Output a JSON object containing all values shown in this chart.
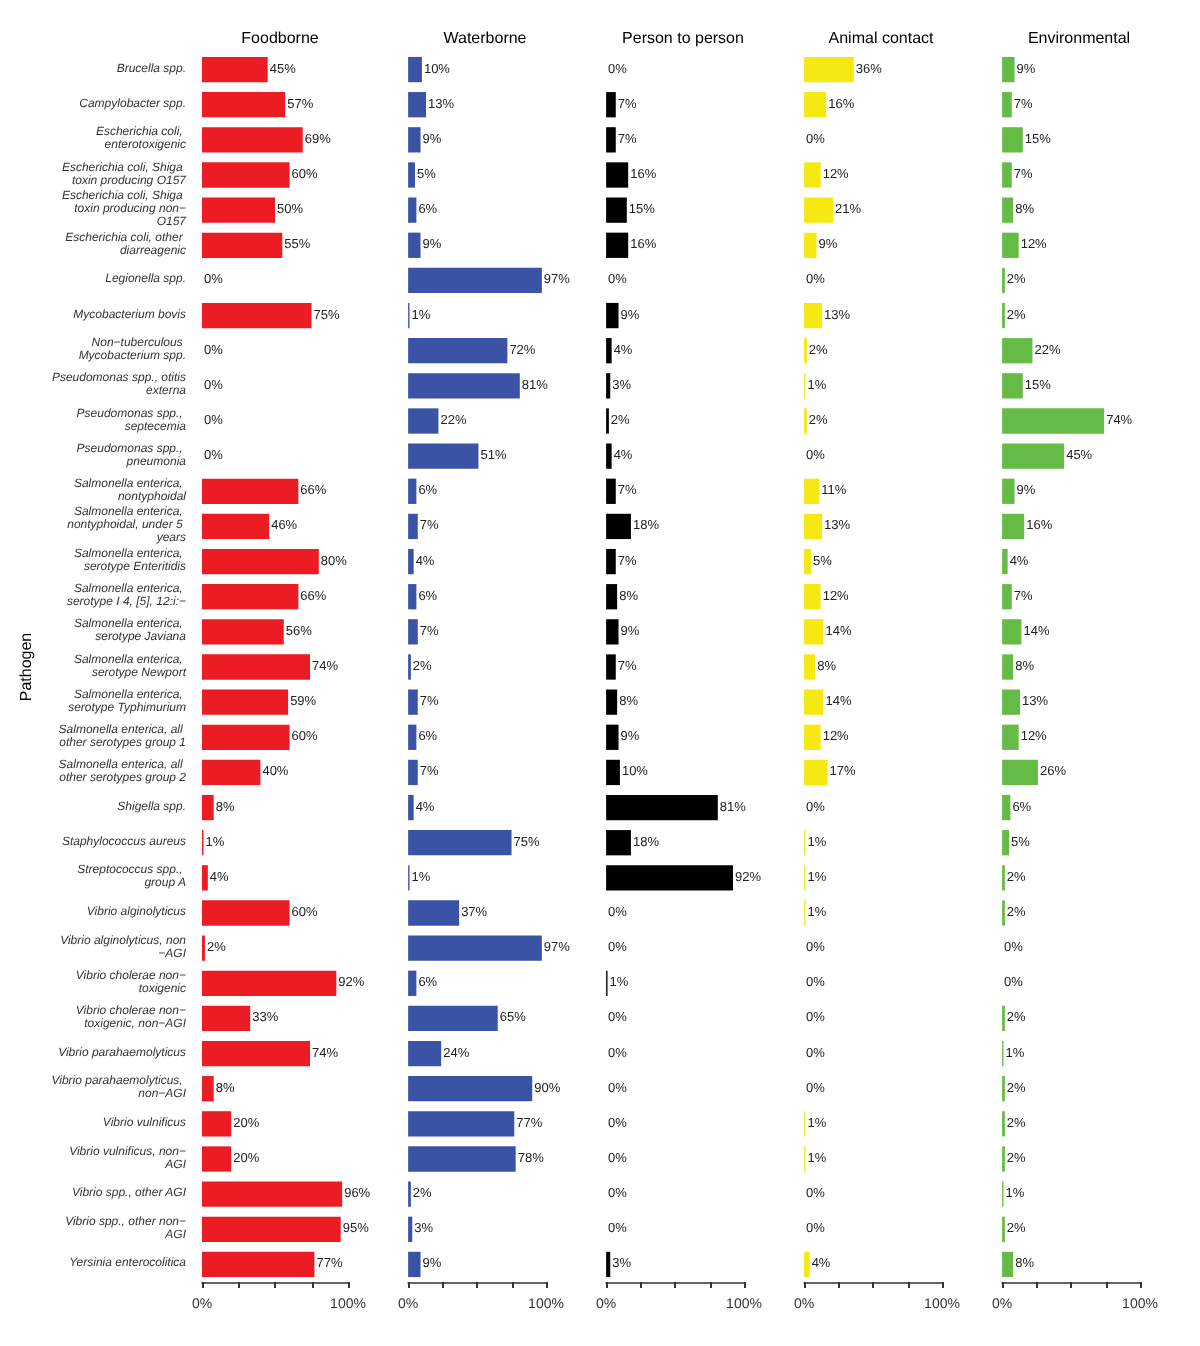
{
  "chart_data": [
    {
      "type": "bar",
      "orientation": "horizontal",
      "title": "Foodborne",
      "ylabel": "Pathogen",
      "color": "#ec1c24",
      "categories": [
        "Brucella spp.",
        "Campylobacter spp.",
        "Escherichia coli, enterotoxigenic",
        "Escherichia coli, Shiga toxin producing O157",
        "Escherichia coli, Shiga toxin producing non−O157",
        "Escherichia coli, other diarreagenic",
        "Legionella spp.",
        "Mycobacterium bovis",
        "Non−tuberculous Mycobacterium spp.",
        "Pseudomonas spp., otitis externa",
        "Pseudomonas spp., septecemia",
        "Pseudomonas spp., pneumonia",
        "Salmonella enterica, nontyphoidal",
        "Salmonella enterica, nontyphoidal, under 5 years",
        "Salmonella enterica, serotype Enteritidis",
        "Salmonella enterica, serotype I 4, [5], 12:i:−",
        "Salmonella enterica, serotype Javiana",
        "Salmonella enterica, serotype Newport",
        "Salmonella enterica, serotype Typhimurium",
        "Salmonella enterica, all other serotypes group 1",
        "Salmonella enterica, all other serotypes group 2",
        "Shigella spp.",
        "Staphylococcus aureus",
        "Streptococcus spp., group A",
        "Vibrio alginolyticus",
        "Vibrio alginolyticus, non−AGI",
        "Vibrio cholerae non−toxigenic",
        "Vibrio cholerae non−toxigenic, non−AGI",
        "Vibrio parahaemolyticus",
        "Vibrio parahaemolyticus, non−AGI",
        "Vibrio vulnificus",
        "Vibrio vulnificus, non−AGI",
        "Vibrio spp., other AGI",
        "Vibrio spp., other non−AGI",
        "Yersinia enterocolitica"
      ],
      "values": [
        45,
        57,
        69,
        60,
        50,
        55,
        0,
        75,
        0,
        0,
        0,
        0,
        66,
        46,
        80,
        66,
        56,
        74,
        59,
        60,
        40,
        8,
        1,
        4,
        60,
        2,
        92,
        33,
        74,
        8,
        20,
        20,
        96,
        95,
        77
      ],
      "value_labels": [
        "45%",
        "57%",
        "69%",
        "60%",
        "50%",
        "55%",
        "0%",
        "75%",
        "0%",
        "0%",
        "0%",
        "0%",
        "66%",
        "46%",
        "80%",
        "66%",
        "56%",
        "74%",
        "59%",
        "60%",
        "40%",
        "8%",
        "1%",
        "4%",
        "60%",
        "2%",
        "92%",
        "33%",
        "74%",
        "8%",
        "20%",
        "20%",
        "96%",
        "95%",
        "77%"
      ],
      "xlim": [
        0,
        100
      ],
      "xticks": [
        {
          "value": 0,
          "label": "0%"
        },
        {
          "value": 25,
          "label": null
        },
        {
          "value": 50,
          "label": null
        },
        {
          "value": 75,
          "label": null
        },
        {
          "value": 100,
          "label": "100%"
        }
      ]
    },
    {
      "type": "bar",
      "orientation": "horizontal",
      "title": "Waterborne",
      "color": "#3a53a4",
      "tick_labels": "x",
      "categories": [
        "Brucella spp.",
        "Campylobacter spp.",
        "Escherichia coli, enterotoxigenic",
        "Escherichia coli, Shiga toxin producing O157",
        "Escherichia coli, Shiga toxin producing non−O157",
        "Escherichia coli, other diarreagenic",
        "Legionella spp.",
        "Mycobacterium bovis",
        "Non−tuberculous Mycobacterium spp.",
        "Pseudomonas spp., otitis externa",
        "Pseudomonas spp., septecemia",
        "Pseudomonas spp., pneumonia",
        "Salmonella enterica, nontyphoidal",
        "Salmonella enterica, nontyphoidal, under 5 years",
        "Salmonella enterica, serotype Enteritidis",
        "Salmonella enterica, serotype I 4, [5], 12:i:−",
        "Salmonella enterica, serotype Javiana",
        "Salmonella enterica, serotype Newport",
        "Salmonella enterica, serotype Typhimurium",
        "Salmonella enterica, all other serotypes group 1",
        "Salmonella enterica, all other serotypes group 2",
        "Shigella spp.",
        "Staphylococcus aureus",
        "Streptococcus spp., group A",
        "Vibrio alginolyticus",
        "Vibrio alginolyticus, non−AGI",
        "Vibrio cholerae non−toxigenic",
        "Vibrio cholerae non−toxigenic, non−AGI",
        "Vibrio parahaemolyticus",
        "Vibrio parahaemolyticus, non−AGI",
        "Vibrio vulnificus",
        "Vibrio vulnificus, non−AGI",
        "Vibrio spp., other AGI",
        "Vibrio spp., other non−AGI",
        "Yersinia enterocolitica"
      ],
      "values": [
        10,
        13,
        9,
        5,
        6,
        9,
        97,
        1,
        72,
        81,
        22,
        51,
        6,
        7,
        4,
        6,
        7,
        2,
        7,
        6,
        7,
        4,
        75,
        1,
        37,
        97,
        6,
        65,
        24,
        90,
        77,
        78,
        2,
        3,
        9
      ],
      "value_labels": [
        "10%",
        "13%",
        "9%",
        "5%",
        "6%",
        "9%",
        "97%",
        "1%",
        "72%",
        "81%",
        "22%",
        "51%",
        "6%",
        "7%",
        "4%",
        "6%",
        "7%",
        "2%",
        "7%",
        "6%",
        "7%",
        "4%",
        "75%",
        "1%",
        "37%",
        "97%",
        "6%",
        "65%",
        "24%",
        "90%",
        "77%",
        "78%",
        "2%",
        "3%",
        "9%"
      ],
      "xlim": [
        0,
        100
      ],
      "xticks": [
        {
          "value": 0,
          "label": "0%"
        },
        {
          "value": 25,
          "label": null
        },
        {
          "value": 50,
          "label": null
        },
        {
          "value": 75,
          "label": null
        },
        {
          "value": 100,
          "label": "100%"
        }
      ]
    },
    {
      "type": "bar",
      "orientation": "horizontal",
      "title": "Person to person",
      "color": "#000000",
      "tick_labels": "x",
      "categories": [
        "Brucella spp.",
        "Campylobacter spp.",
        "Escherichia coli, enterotoxigenic",
        "Escherichia coli, Shiga toxin producing O157",
        "Escherichia coli, Shiga toxin producing non−O157",
        "Escherichia coli, other diarreagenic",
        "Legionella spp.",
        "Mycobacterium bovis",
        "Non−tuberculous Mycobacterium spp.",
        "Pseudomonas spp., otitis externa",
        "Pseudomonas spp., septecemia",
        "Pseudomonas spp., pneumonia",
        "Salmonella enterica, nontyphoidal",
        "Salmonella enterica, nontyphoidal, under 5 years",
        "Salmonella enterica, serotype Enteritidis",
        "Salmonella enterica, serotype I 4, [5], 12:i:−",
        "Salmonella enterica, serotype Javiana",
        "Salmonella enterica, serotype Newport",
        "Salmonella enterica, serotype Typhimurium",
        "Salmonella enterica, all other serotypes group 1",
        "Salmonella enterica, all other serotypes group 2",
        "Shigella spp.",
        "Staphylococcus aureus",
        "Streptococcus spp., group A",
        "Vibrio alginolyticus",
        "Vibrio alginolyticus, non−AGI",
        "Vibrio cholerae non−toxigenic",
        "Vibrio cholerae non−toxigenic, non−AGI",
        "Vibrio parahaemolyticus",
        "Vibrio parahaemolyticus, non−AGI",
        "Vibrio vulnificus",
        "Vibrio vulnificus, non−AGI",
        "Vibrio spp., other AGI",
        "Vibrio spp., other non−AGI",
        "Yersinia enterocolitica"
      ],
      "values": [
        0,
        7,
        7,
        16,
        15,
        16,
        0,
        9,
        4,
        3,
        2,
        4,
        7,
        18,
        7,
        8,
        9,
        7,
        8,
        9,
        10,
        81,
        18,
        92,
        0,
        0,
        1,
        0,
        0,
        0,
        0,
        0,
        0,
        0,
        3
      ],
      "value_labels": [
        "0%",
        "7%",
        "7%",
        "16%",
        "15%",
        "16%",
        "0%",
        "9%",
        "4%",
        "3%",
        "2%",
        "4%",
        "7%",
        "18%",
        "7%",
        "8%",
        "9%",
        "7%",
        "8%",
        "9%",
        "10%",
        "81%",
        "18%",
        "92%",
        "0%",
        "0%",
        "1%",
        "0%",
        "0%",
        "0%",
        "0%",
        "0%",
        "0%",
        "0%",
        "3%"
      ],
      "xlim": [
        0,
        100
      ],
      "xticks": [
        {
          "value": 0,
          "label": "0%"
        },
        {
          "value": 25,
          "label": null
        },
        {
          "value": 50,
          "label": null
        },
        {
          "value": 75,
          "label": null
        },
        {
          "value": 100,
          "label": "100%"
        }
      ]
    },
    {
      "type": "bar",
      "orientation": "horizontal",
      "title": "Animal contact",
      "color": "#f5e911",
      "tick_labels": "x",
      "categories": [
        "Brucella spp.",
        "Campylobacter spp.",
        "Escherichia coli, enterotoxigenic",
        "Escherichia coli, Shiga toxin producing O157",
        "Escherichia coli, Shiga toxin producing non−O157",
        "Escherichia coli, other diarreagenic",
        "Legionella spp.",
        "Mycobacterium bovis",
        "Non−tuberculous Mycobacterium spp.",
        "Pseudomonas spp., otitis externa",
        "Pseudomonas spp., septecemia",
        "Pseudomonas spp., pneumonia",
        "Salmonella enterica, nontyphoidal",
        "Salmonella enterica, nontyphoidal, under 5 years",
        "Salmonella enterica, serotype Enteritidis",
        "Salmonella enterica, serotype I 4, [5], 12:i:−",
        "Salmonella enterica, serotype Javiana",
        "Salmonella enterica, serotype Newport",
        "Salmonella enterica, serotype Typhimurium",
        "Salmonella enterica, all other serotypes group 1",
        "Salmonella enterica, all other serotypes group 2",
        "Shigella spp.",
        "Staphylococcus aureus",
        "Streptococcus spp., group A",
        "Vibrio alginolyticus",
        "Vibrio alginolyticus, non−AGI",
        "Vibrio cholerae non−toxigenic",
        "Vibrio cholerae non−toxigenic, non−AGI",
        "Vibrio parahaemolyticus",
        "Vibrio parahaemolyticus, non−AGI",
        "Vibrio vulnificus",
        "Vibrio vulnificus, non−AGI",
        "Vibrio spp., other AGI",
        "Vibrio spp., other non−AGI",
        "Yersinia enterocolitica"
      ],
      "values": [
        36,
        16,
        0,
        12,
        21,
        9,
        0,
        13,
        2,
        1,
        2,
        0,
        11,
        13,
        5,
        12,
        14,
        8,
        14,
        12,
        17,
        0,
        1,
        1,
        1,
        0,
        0,
        0,
        0,
        0,
        1,
        1,
        0,
        0,
        4
      ],
      "value_labels": [
        "36%",
        "16%",
        "0%",
        "12%",
        "21%",
        "9%",
        "0%",
        "13%",
        "2%",
        "1%",
        "2%",
        "0%",
        "11%",
        "13%",
        "5%",
        "12%",
        "14%",
        "8%",
        "14%",
        "12%",
        "17%",
        "0%",
        "1%",
        "1%",
        "1%",
        "0%",
        "0%",
        "0%",
        "0%",
        "0%",
        "1%",
        "1%",
        "0%",
        "0%",
        "4%"
      ],
      "xlim": [
        0,
        100
      ],
      "xticks": [
        {
          "value": 0,
          "label": "0%"
        },
        {
          "value": 25,
          "label": null
        },
        {
          "value": 50,
          "label": null
        },
        {
          "value": 75,
          "label": null
        },
        {
          "value": 100,
          "label": "100%"
        }
      ]
    },
    {
      "type": "bar",
      "orientation": "horizontal",
      "title": "Environmental",
      "color": "#66bb46",
      "tick_labels": "x",
      "categories": [
        "Brucella spp.",
        "Campylobacter spp.",
        "Escherichia coli, enterotoxigenic",
        "Escherichia coli, Shiga toxin producing O157",
        "Escherichia coli, Shiga toxin producing non−O157",
        "Escherichia coli, other diarreagenic",
        "Legionella spp.",
        "Mycobacterium bovis",
        "Non−tuberculous Mycobacterium spp.",
        "Pseudomonas spp., otitis externa",
        "Pseudomonas spp., septecemia",
        "Pseudomonas spp., pneumonia",
        "Salmonella enterica, nontyphoidal",
        "Salmonella enterica, nontyphoidal, under 5 years",
        "Salmonella enterica, serotype Enteritidis",
        "Salmonella enterica, serotype I 4, [5], 12:i:−",
        "Salmonella enterica, serotype Javiana",
        "Salmonella enterica, serotype Newport",
        "Salmonella enterica, serotype Typhimurium",
        "Salmonella enterica, all other serotypes group 1",
        "Salmonella enterica, all other serotypes group 2",
        "Shigella spp.",
        "Staphylococcus aureus",
        "Streptococcus spp., group A",
        "Vibrio alginolyticus",
        "Vibrio alginolyticus, non−AGI",
        "Vibrio cholerae non−toxigenic",
        "Vibrio cholerae non−toxigenic, non−AGI",
        "Vibrio parahaemolyticus",
        "Vibrio parahaemolyticus, non−AGI",
        "Vibrio vulnificus",
        "Vibrio vulnificus, non−AGI",
        "Vibrio spp., other AGI",
        "Vibrio spp., other non−AGI",
        "Yersinia enterocolitica"
      ],
      "values": [
        9,
        7,
        15,
        7,
        8,
        12,
        2,
        2,
        22,
        15,
        74,
        45,
        9,
        16,
        4,
        7,
        14,
        8,
        13,
        12,
        26,
        6,
        5,
        2,
        2,
        0,
        0,
        2,
        1,
        2,
        2,
        2,
        1,
        2,
        8
      ],
      "value_labels": [
        "9%",
        "7%",
        "15%",
        "7%",
        "8%",
        "12%",
        "2%",
        "2%",
        "22%",
        "15%",
        "74%",
        "45%",
        "9%",
        "16%",
        "4%",
        "7%",
        "14%",
        "8%",
        "13%",
        "12%",
        "26%",
        "6%",
        "5%",
        "2%",
        "2%",
        "0%",
        "0%",
        "2%",
        "1%",
        "2%",
        "2%",
        "2%",
        "1%",
        "2%",
        "8%"
      ],
      "xlim": [
        0,
        100
      ],
      "xticks": [
        {
          "value": 0,
          "label": "0%"
        },
        {
          "value": 25,
          "label": null
        },
        {
          "value": 50,
          "label": null
        },
        {
          "value": 75,
          "label": null
        },
        {
          "value": 100,
          "label": "100%"
        }
      ]
    }
  ]
}
